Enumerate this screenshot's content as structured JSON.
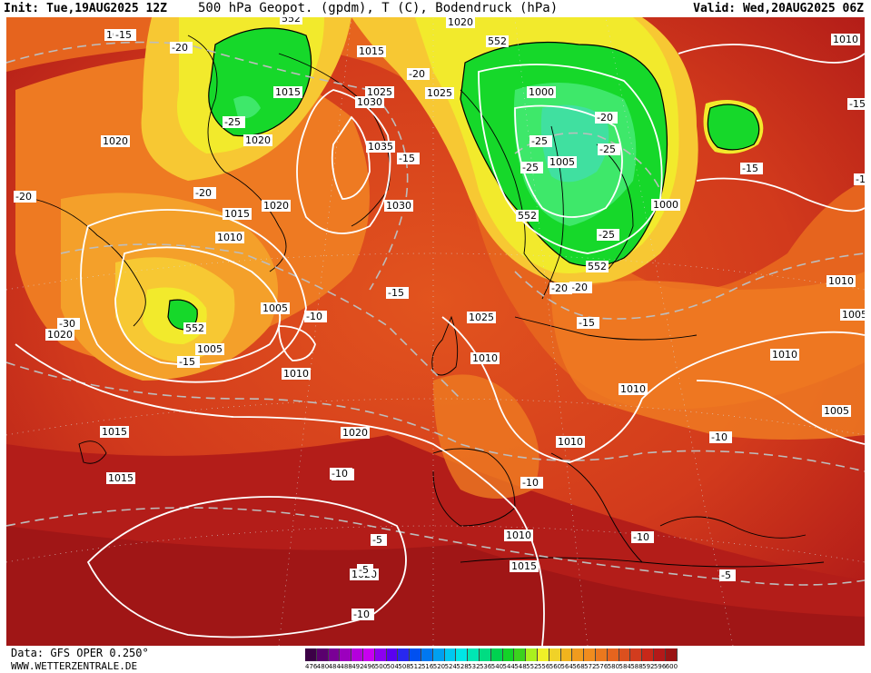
{
  "header": {
    "init": "Init: Tue,19AUG2025 12Z",
    "title": "500 hPa Geopot. (gpdm), T (C), Bodendruck (hPa)",
    "valid": "Valid: Wed,20AUG2025 06Z"
  },
  "footer": {
    "data_source": "Data: GFS OPER 0.250°",
    "website": "WWW.WETTERZENTRALE.DE"
  },
  "colors": {
    "ocean_deep_red": "#a81818",
    "warm_red": "#d23a1c",
    "orange_red": "#e2541e",
    "orange": "#ee7a22",
    "light_orange": "#f4a02a",
    "yellow_orange": "#f7c833",
    "yellow": "#f2ea2c",
    "green": "#16d82a",
    "light_green": "#3ee86a",
    "teal_green": "#40e0a0",
    "isobar": "#ffffff",
    "isotherm": "#bdbdbd",
    "coast": "#000000"
  },
  "map": {
    "pressure_labels": [
      "1020",
      "1020",
      "1015",
      "1020",
      "1000",
      "1010",
      "1020",
      "1015",
      "1025",
      "1030",
      "1035",
      "1025",
      "1030",
      "1005",
      "1000",
      "1005",
      "1010",
      "1020",
      "1015",
      "1010",
      "1005",
      "1010",
      "1020",
      "1025",
      "1010",
      "1005",
      "1010",
      "1020",
      "1010",
      "1015",
      "1015",
      "1010",
      "1015",
      "1010",
      "1005",
      "1020"
    ],
    "temperature_labels": [
      "-15",
      "-20",
      "-20",
      "-25",
      "-20",
      "-25",
      "-15",
      "-30",
      "-25",
      "-25",
      "-20",
      "-25",
      "-15",
      "-20",
      "-10",
      "-15",
      "-10",
      "-15",
      "-15",
      "-15",
      "-10",
      "-10",
      "-5",
      "-10",
      "-5",
      "-5",
      "-10",
      "-10",
      "-20",
      "-15",
      "-20"
    ],
    "geopotential_labels": [
      "552",
      "552",
      "552",
      "552",
      "552"
    ]
  },
  "scale": {
    "values": [
      "476",
      "480",
      "484",
      "488",
      "492",
      "496",
      "500",
      "504",
      "508",
      "512",
      "516",
      "520",
      "524",
      "528",
      "532",
      "536",
      "540",
      "544",
      "548",
      "552",
      "556",
      "560",
      "564",
      "568",
      "572",
      "576",
      "580",
      "584",
      "588",
      "592",
      "596",
      "600"
    ],
    "colors": [
      "#3c0046",
      "#5a006e",
      "#7a0096",
      "#9c00be",
      "#b400dc",
      "#c800f0",
      "#8c00f0",
      "#5a00f0",
      "#2828f0",
      "#0050f0",
      "#0078f0",
      "#00a0f0",
      "#00c8f0",
      "#00e6e6",
      "#00e6b4",
      "#00dc82",
      "#00d250",
      "#14d228",
      "#3cd21e",
      "#aaf01e",
      "#f0f028",
      "#f0d228",
      "#f0b41e",
      "#f09b1e",
      "#f08c1e",
      "#eb781e",
      "#e6641e",
      "#dc501e",
      "#d23c1e",
      "#c82819",
      "#b41919",
      "#9a1414"
    ]
  }
}
